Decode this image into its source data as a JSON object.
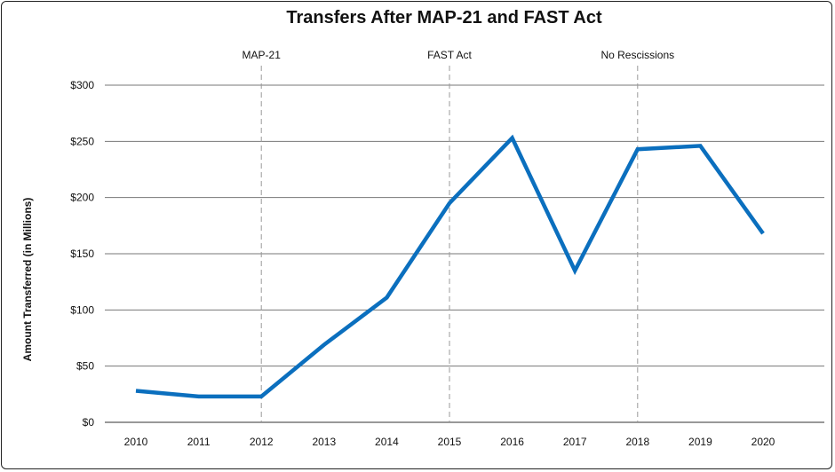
{
  "chart_data": {
    "type": "line",
    "title": "Transfers After MAP-21 and FAST Act",
    "xlabel": "",
    "ylabel": "Amount Transferred (in Millions)",
    "ylim": [
      0,
      300
    ],
    "y_ticks": [
      0,
      50,
      100,
      150,
      200,
      250,
      300
    ],
    "y_tick_labels": [
      "$0",
      "$50",
      "$100",
      "$150",
      "$200",
      "$250",
      "$300"
    ],
    "categories": [
      "2010",
      "2011",
      "2012",
      "2013",
      "2014",
      "2015",
      "2016",
      "2017",
      "2018",
      "2019",
      "2020"
    ],
    "series": [
      {
        "values": [
          28,
          23,
          23,
          69,
          111,
          195,
          253,
          135,
          243,
          246,
          168
        ],
        "color": "#0b6fbe"
      }
    ],
    "annotations": [
      {
        "label": "MAP-21",
        "x": "2012"
      },
      {
        "label": "FAST Act",
        "x": "2015"
      },
      {
        "label": "No Rescissions",
        "x": "2018"
      }
    ],
    "grid": "horizontal",
    "legend": "none",
    "colors": {
      "line": "#0b6fbe",
      "grid": "#777777",
      "annotation_line": "#999999"
    }
  }
}
